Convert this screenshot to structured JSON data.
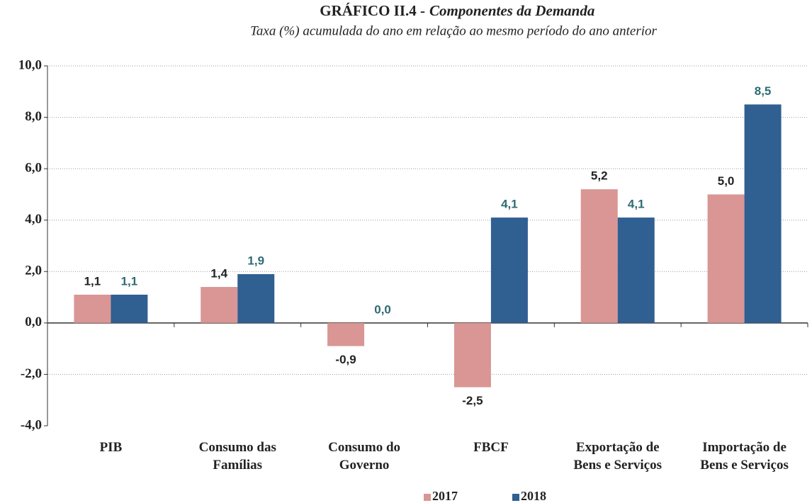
{
  "chart_data": {
    "type": "bar",
    "title_prefix": "GRÁFICO II.4 -",
    "title": "Componentes da Demanda",
    "subtitle": "Taxa (%) acumulada do ano em relação ao mesmo período do ano anterior",
    "categories": [
      "PIB",
      "Consumo das Famílias",
      "Consumo do Governo",
      "FBCF",
      "Exportação de Bens e Serviços",
      "Importação de Bens e Serviços"
    ],
    "series": [
      {
        "name": "2017",
        "color": "#d99694",
        "label_color": "#222222",
        "values": [
          1.1,
          1.4,
          -0.9,
          -2.5,
          5.2,
          5.0
        ],
        "value_labels": [
          "1,1",
          "1,4",
          "-0,9",
          "-2,5",
          "5,2",
          "5,0"
        ]
      },
      {
        "name": "2018",
        "color": "#305f91",
        "label_color": "#2e6b73",
        "values": [
          1.1,
          1.9,
          0.0,
          4.1,
          4.1,
          8.5
        ],
        "value_labels": [
          "1,1",
          "1,9",
          "0,0",
          "4,1",
          "4,1",
          "8,5"
        ]
      }
    ],
    "ylim": [
      -4,
      10
    ],
    "yticks": [
      {
        "value": -4,
        "label": "-4,0"
      },
      {
        "value": -2,
        "label": "-2,0"
      },
      {
        "value": 0,
        "label": "0,0"
      },
      {
        "value": 2,
        "label": "2,0"
      },
      {
        "value": 4,
        "label": "4,0"
      },
      {
        "value": 6,
        "label": "6,0"
      },
      {
        "value": 8,
        "label": "8,0"
      },
      {
        "value": 10,
        "label": "10,0"
      }
    ],
    "grid": true,
    "legend": "bottom"
  }
}
